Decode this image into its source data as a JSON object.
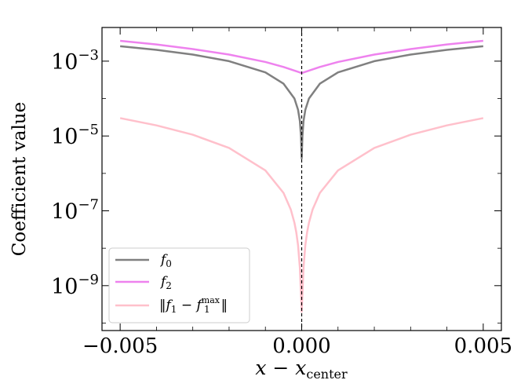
{
  "chart_data": {
    "type": "line",
    "title": "",
    "xlabel": "x − x",
    "xlabel_sub": "center",
    "ylabel": "Coefficient value",
    "xlim": [
      -0.0055,
      0.0055
    ],
    "ylim_log10": [
      -10.2,
      -2.1
    ],
    "yscale": "log",
    "grid": false,
    "legend_placement": "lower-left",
    "x_ticks": [
      {
        "value": -0.005,
        "label": "−0.005"
      },
      {
        "value": 0.0,
        "label": "0.000"
      },
      {
        "value": 0.005,
        "label": "0.005"
      }
    ],
    "y_ticks": [
      {
        "exp": -3,
        "base": "10",
        "power": "−3"
      },
      {
        "exp": -5,
        "base": "10",
        "power": "−5"
      },
      {
        "exp": -7,
        "base": "10",
        "power": "−7"
      },
      {
        "exp": -9,
        "base": "10",
        "power": "−9"
      }
    ],
    "vline_x": 0.0,
    "series": [
      {
        "key": "f0",
        "name": "f",
        "sub": "0",
        "color": "#808080",
        "x": [
          -0.005,
          -0.004,
          -0.003,
          -0.002,
          -0.001,
          -0.0005,
          -0.0002,
          -0.0001,
          -5e-05,
          -2e-05,
          0.0,
          2e-05,
          5e-05,
          0.0001,
          0.0002,
          0.0005,
          0.001,
          0.002,
          0.003,
          0.004,
          0.005
        ],
        "y": [
          0.0025,
          0.002,
          0.0015,
          0.001,
          0.0005,
          0.00025,
          0.0001,
          5e-05,
          2.5e-05,
          1e-05,
          2.5e-06,
          1e-05,
          2.5e-05,
          5e-05,
          0.0001,
          0.00025,
          0.0005,
          0.001,
          0.0015,
          0.002,
          0.0025
        ]
      },
      {
        "key": "f2",
        "name": "f",
        "sub": "2",
        "color": "#ee82ee",
        "x": [
          -0.005,
          -0.004,
          -0.003,
          -0.002,
          -0.001,
          -0.0005,
          0.0,
          0.0005,
          0.001,
          0.002,
          0.003,
          0.004,
          0.005
        ],
        "y": [
          0.0035,
          0.0028,
          0.0021,
          0.0015,
          0.00095,
          0.0007,
          0.00048,
          0.0007,
          0.00095,
          0.0015,
          0.0021,
          0.0028,
          0.0035
        ]
      },
      {
        "key": "diff",
        "name": "‖f",
        "sub": "1",
        "mid": " − f",
        "sup": "max",
        "sub2": "1",
        "tail": "‖",
        "color": "#ffc0cb",
        "x": [
          -0.005,
          -0.004,
          -0.003,
          -0.002,
          -0.001,
          -0.0005,
          -0.0003,
          -0.0002,
          -0.00015,
          -0.0001,
          -5e-05,
          0.0,
          5e-05,
          0.0001,
          0.00015,
          0.0002,
          0.0003,
          0.0005,
          0.001,
          0.002,
          0.003,
          0.004,
          0.005
        ],
        "y": [
          3e-05,
          1.92e-05,
          1.08e-05,
          4.8e-06,
          1.2e-06,
          3e-07,
          1.08e-07,
          4.8e-08,
          2.7e-08,
          1.2e-08,
          3e-09,
          2e-10,
          3e-09,
          1.2e-08,
          2.7e-08,
          4.8e-08,
          1.08e-07,
          3e-07,
          1.2e-06,
          4.8e-06,
          1.08e-05,
          1.92e-05,
          3e-05
        ]
      }
    ]
  }
}
